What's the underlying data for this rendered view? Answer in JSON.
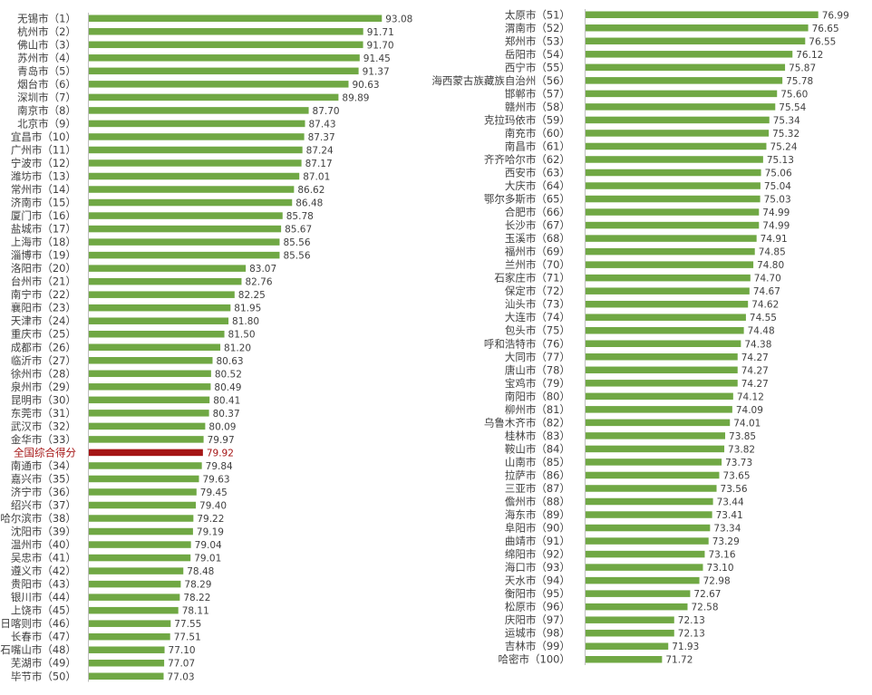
{
  "chart_data": [
    {
      "type": "bar",
      "orientation": "horizontal",
      "categories": [
        "无锡市（1）",
        "杭州市（2）",
        "佛山市（3）",
        "苏州市（4）",
        "青岛市（5）",
        "烟台市（6）",
        "深圳市（7）",
        "南京市（8）",
        "北京市（9）",
        "宜昌市（10）",
        "广州市（11）",
        "宁波市（12）",
        "潍坊市（13）",
        "常州市（14）",
        "济南市（15）",
        "厦门市（16）",
        "盐城市（17）",
        "上海市（18）",
        "淄博市（19）",
        "洛阳市（20）",
        "台州市（21）",
        "南宁市（22）",
        "襄阳市（23）",
        "天津市（24）",
        "重庆市（25）",
        "成都市（26）",
        "临沂市（27）",
        "徐州市（28）",
        "泉州市（29）",
        "昆明市（30）",
        "东莞市（31）",
        "武汉市（32）",
        "金华市（33）",
        "全国综合得分",
        "南通市（34）",
        "嘉兴市（35）",
        "济宁市（36）",
        "绍兴市（37）",
        "哈尔滨市（38）",
        "沈阳市（39）",
        "温州市（40）",
        "吴忠市（41）",
        "遵义市（42）",
        "贵阳市（43）",
        "银川市（44）",
        "上饶市（45）",
        "日喀则市（46）",
        "长春市（47）",
        "石嘴山市（48）",
        "芜湖市（49）",
        "毕节市（50）"
      ],
      "values": [
        93.08,
        91.71,
        91.7,
        91.45,
        91.37,
        90.63,
        89.89,
        87.7,
        87.43,
        87.37,
        87.24,
        87.17,
        87.01,
        86.62,
        86.48,
        85.78,
        85.67,
        85.56,
        85.56,
        83.07,
        82.76,
        82.25,
        81.95,
        81.8,
        81.5,
        81.2,
        80.63,
        80.52,
        80.49,
        80.41,
        80.37,
        80.09,
        79.97,
        79.92,
        79.84,
        79.63,
        79.45,
        79.4,
        79.22,
        79.19,
        79.04,
        79.01,
        78.48,
        78.29,
        78.22,
        78.11,
        77.55,
        77.51,
        77.1,
        77.07,
        77.03
      ],
      "value_labels": [
        "93.08",
        "91.71",
        "91.70",
        "91.45",
        "91.37",
        "90.63",
        "89.89",
        "87.70",
        "87.43",
        "87.37",
        "87.24",
        "87.17",
        "87.01",
        "86.62",
        "86.48",
        "85.78",
        "85.67",
        "85.56",
        "85.56",
        "83.07",
        "82.76",
        "82.25",
        "81.95",
        "81.80",
        "81.50",
        "81.20",
        "80.63",
        "80.52",
        "80.49",
        "80.41",
        "80.37",
        "80.09",
        "79.97",
        "79.92",
        "79.84",
        "79.63",
        "79.45",
        "79.40",
        "79.22",
        "79.19",
        "79.04",
        "79.01",
        "78.48",
        "78.29",
        "78.22",
        "78.11",
        "77.55",
        "77.51",
        "77.10",
        "77.07",
        "77.03"
      ],
      "highlight_category": "全国综合得分",
      "bar_color": "#70a844",
      "highlight_color": "#a51515",
      "title": "",
      "xlabel": "",
      "ylabel": "",
      "grid": false
    },
    {
      "type": "bar",
      "orientation": "horizontal",
      "categories": [
        "太原市（51）",
        "渭南市（52）",
        "郑州市（53）",
        "岳阳市（54）",
        "西宁市（55）",
        "海西蒙古族藏族自治州（56）",
        "邯郸市（57）",
        "赣州市（58）",
        "克拉玛依市（59）",
        "南充市（60）",
        "南昌市（61）",
        "齐齐哈尔市（62）",
        "西安市（63）",
        "大庆市（64）",
        "鄂尔多斯市（65）",
        "合肥市（66）",
        "长沙市（67）",
        "玉溪市（68）",
        "福州市（69）",
        "兰州市（70）",
        "石家庄市（71）",
        "保定市（72）",
        "汕头市（73）",
        "大连市（74）",
        "包头市（75）",
        "呼和浩特市（76）",
        "大同市（77）",
        "唐山市（78）",
        "宝鸡市（79）",
        "南阳市（80）",
        "柳州市（81）",
        "乌鲁木齐市（82）",
        "桂林市（83）",
        "鞍山市（84）",
        "山南市（85）",
        "拉萨市（86）",
        "三亚市（87）",
        "儋州市（88）",
        "海东市（89）",
        "阜阳市（90）",
        "曲靖市（91）",
        "绵阳市（92）",
        "海口市（93）",
        "天水市（94）",
        "衡阳市（95）",
        "松原市（96）",
        "庆阳市（97）",
        "运城市（98）",
        "吉林市（99）",
        "哈密市（100）"
      ],
      "values": [
        76.99,
        76.65,
        76.55,
        76.12,
        75.87,
        75.78,
        75.6,
        75.54,
        75.34,
        75.32,
        75.24,
        75.13,
        75.06,
        75.04,
        75.03,
        74.99,
        74.99,
        74.91,
        74.85,
        74.8,
        74.7,
        74.67,
        74.62,
        74.55,
        74.48,
        74.38,
        74.27,
        74.27,
        74.27,
        74.12,
        74.09,
        74.01,
        73.85,
        73.82,
        73.73,
        73.65,
        73.56,
        73.44,
        73.41,
        73.34,
        73.29,
        73.16,
        73.1,
        72.98,
        72.67,
        72.58,
        72.13,
        72.13,
        71.93,
        71.72
      ],
      "value_labels": [
        "76.99",
        "76.65",
        "76.55",
        "76.12",
        "75.87",
        "75.78",
        "75.60",
        "75.54",
        "75.34",
        "75.32",
        "75.24",
        "75.13",
        "75.06",
        "75.04",
        "75.03",
        "74.99",
        "74.99",
        "74.91",
        "74.85",
        "74.80",
        "74.70",
        "74.67",
        "74.62",
        "74.55",
        "74.48",
        "74.38",
        "74.27",
        "74.27",
        "74.27",
        "74.12",
        "74.09",
        "74.01",
        "73.85",
        "73.82",
        "73.73",
        "73.65",
        "73.56",
        "73.44",
        "73.41",
        "73.34",
        "73.29",
        "73.16",
        "73.10",
        "72.98",
        "72.67",
        "72.58",
        "72.13",
        "72.13",
        "71.93",
        "71.72"
      ],
      "bar_color": "#70a844",
      "title": "",
      "xlabel": "",
      "ylabel": "",
      "grid": false
    }
  ]
}
